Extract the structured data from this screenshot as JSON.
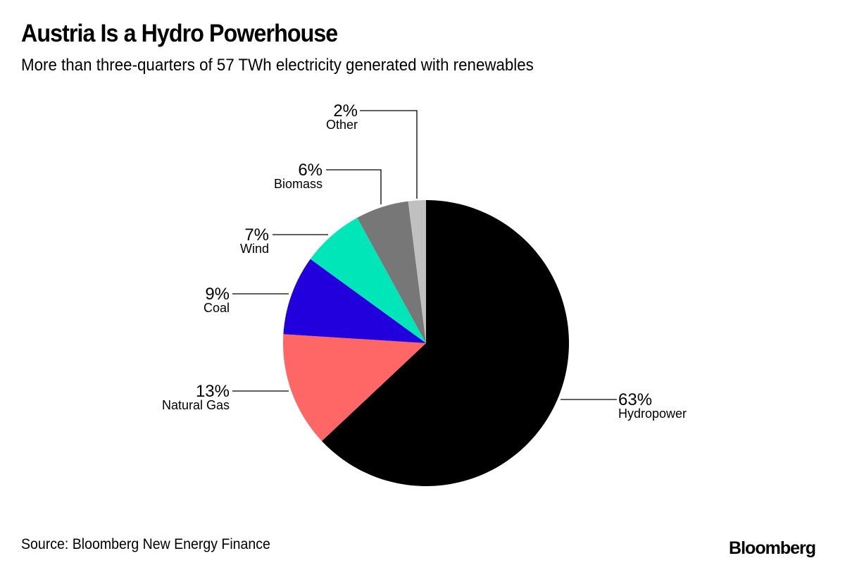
{
  "header": {
    "title": "Austria Is a Hydro Powerhouse",
    "subtitle": "More than three-quarters of 57 TWh electricity generated with renewables"
  },
  "footer": {
    "source": "Source: Bloomberg New Energy Finance",
    "brand": "Bloomberg"
  },
  "labels": {
    "hydro_pct": "63%",
    "hydro_name": "Hydropower",
    "gas_pct": "13%",
    "gas_name": "Natural Gas",
    "coal_pct": "9%",
    "coal_name": "Coal",
    "wind_pct": "7%",
    "wind_name": "Wind",
    "biomass_pct": "6%",
    "biomass_name": "Biomass",
    "other_pct": "2%",
    "other_name": "Other"
  },
  "chart_data": {
    "type": "pie",
    "title": "Austria Is a Hydro Powerhouse",
    "subtitle": "More than three-quarters of 57 TWh electricity generated with renewables",
    "categories": [
      "Hydropower",
      "Natural Gas",
      "Coal",
      "Wind",
      "Biomass",
      "Other"
    ],
    "values": [
      63,
      13,
      9,
      7,
      6,
      2
    ],
    "unit": "%",
    "colors": [
      "#000000",
      "#ff6666",
      "#2200dd",
      "#00e6b8",
      "#777777",
      "#c0c0c0"
    ],
    "start_angle": "12 o'clock",
    "direction": "clockwise",
    "legend": "none (direct labels with leader lines)",
    "source": "Source: Bloomberg New Energy Finance"
  }
}
